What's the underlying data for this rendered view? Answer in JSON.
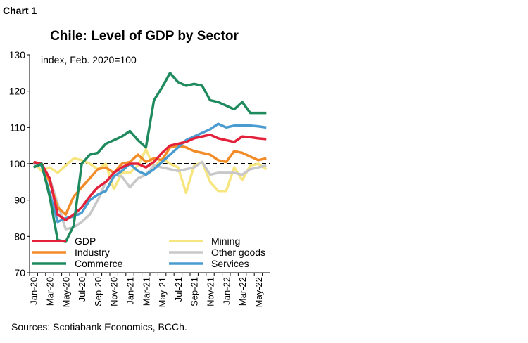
{
  "header": "Chart 1",
  "chart_data": {
    "type": "line",
    "title": "Chile: Level of GDP by Sector",
    "subtitle": "index, Feb. 2020=100",
    "source": "Sources: Scotiabank Economics, BCCh.",
    "categories": [
      "Jan-20",
      null,
      "Mar-20",
      null,
      "May-20",
      null,
      "Jul-20",
      null,
      "Sep-20",
      null,
      "Nov-20",
      null,
      "Jan-21",
      null,
      "Mar-21",
      null,
      "May-21",
      null,
      "Jul-21",
      null,
      "Sep-21",
      null,
      "Nov-21",
      null,
      "Jan-22",
      null,
      "Mar-22",
      null,
      "May-22",
      null
    ],
    "series": [
      {
        "name": "GDP",
        "color": "#e3213a",
        "values": [
          100.5,
          100,
          96,
          86,
          84.5,
          86,
          88,
          91,
          93.5,
          95,
          97.5,
          99,
          100,
          100,
          99,
          100.5,
          103,
          105,
          105.5,
          106,
          107,
          107.5,
          108,
          107,
          106.5,
          106,
          107.5,
          107.3,
          107,
          106.8
        ]
      },
      {
        "name": "Mining",
        "color": "#f7e680",
        "values": [
          100.5,
          98,
          99,
          97.5,
          99.5,
          101.5,
          101,
          100,
          98.5,
          100,
          93,
          97.5,
          97.5,
          99.5,
          104,
          99,
          101.5,
          100,
          99,
          92,
          99.5,
          100.5,
          95,
          92.5,
          92.5,
          99,
          95.5,
          99.5,
          100,
          98.5
        ]
      },
      {
        "name": "Industry",
        "color": "#f28c28",
        "values": [
          100.5,
          100,
          95,
          88,
          86,
          91,
          93.5,
          96,
          98.5,
          99,
          97.5,
          100,
          100.5,
          102.5,
          100.5,
          101.5,
          101,
          104.5,
          105,
          104.5,
          103.5,
          103,
          102.5,
          101,
          100.5,
          103.5,
          103,
          102,
          101,
          101.5
        ]
      },
      {
        "name": "Other goods",
        "color": "#c8c8c8",
        "values": [
          100,
          99.5,
          96,
          89,
          82,
          82.5,
          84,
          86,
          90,
          95,
          97,
          96.5,
          93.5,
          96,
          97,
          99.5,
          99,
          98.5,
          98,
          98.5,
          99,
          100.5,
          97,
          97.5,
          97.5,
          97.5,
          97,
          98.5,
          99,
          99.5
        ]
      },
      {
        "name": "Commerce",
        "color": "#1e8a5e",
        "values": [
          99,
          100,
          91,
          79,
          78.5,
          83,
          100,
          102.5,
          103,
          105.5,
          106.5,
          107.5,
          109,
          106.5,
          104.5,
          117.5,
          121,
          125,
          122.5,
          121.5,
          122,
          121.5,
          117.5,
          117,
          116,
          115,
          117,
          114,
          114,
          114
        ]
      },
      {
        "name": "Services",
        "color": "#4a9cd0",
        "values": [
          100.5,
          99.5,
          92,
          84,
          85,
          85.5,
          86.5,
          90,
          91.5,
          92.5,
          96.5,
          98,
          100,
          98,
          97,
          98.5,
          100.5,
          102.5,
          104.5,
          106.5,
          107.5,
          108.5,
          109.5,
          111,
          110,
          110.5,
          110.5,
          110.5,
          110.3,
          110
        ]
      }
    ],
    "ylim": [
      70,
      130
    ],
    "yticks": [
      70,
      80,
      90,
      100,
      110,
      120,
      130
    ],
    "reference_line": 100
  }
}
